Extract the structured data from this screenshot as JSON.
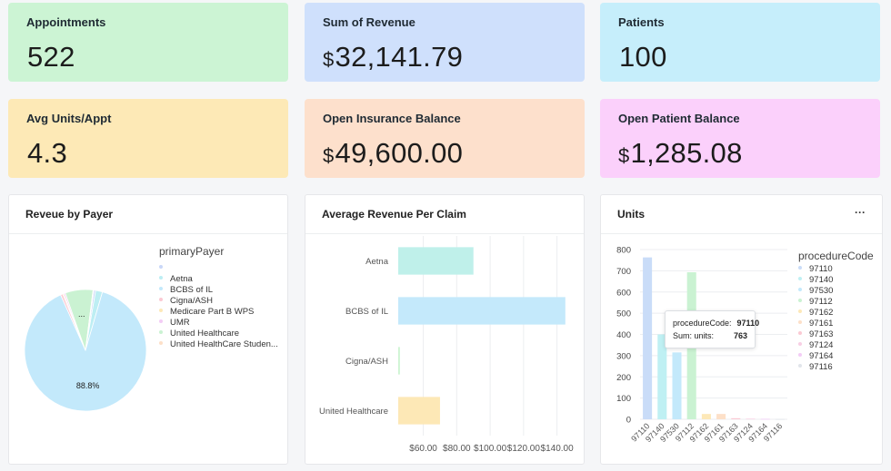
{
  "kpis": [
    {
      "title": "Appointments",
      "currency": "",
      "value": "522",
      "color": "#ccf4d4"
    },
    {
      "title": "Sum of Revenue",
      "currency": "$",
      "value": "32,141.79",
      "color": "#cfe0fc"
    },
    {
      "title": "Patients",
      "currency": "",
      "value": "100",
      "color": "#c6eefb"
    },
    {
      "title": "Avg Units/Appt",
      "currency": "",
      "value": "4.3",
      "color": "#fde9b6"
    },
    {
      "title": "Open Insurance Balance",
      "currency": "$",
      "value": "49,600.00",
      "color": "#fde0cc"
    },
    {
      "title": "Open Patient Balance",
      "currency": "$",
      "value": "1,285.08",
      "color": "#fbd0fb"
    }
  ],
  "panels": {
    "payer": {
      "title": "Reveue by Payer"
    },
    "claim": {
      "title": "Average Revenue Per Claim"
    },
    "units": {
      "title": "Units",
      "menu": "···"
    }
  },
  "chart_data": [
    {
      "type": "pie",
      "title": "Reveue by Payer",
      "legend_title": "primaryPayer",
      "legend_position": "right",
      "slices": [
        {
          "label": "",
          "value": 0.5,
          "color": "#c9d7f8"
        },
        {
          "label": "Aetna",
          "value": 1.8,
          "color": "#bdeef3"
        },
        {
          "label": "BCBS of IL",
          "value": 88.8,
          "color": "#c3e9fb"
        },
        {
          "label": "Cigna/ASH",
          "value": 0.6,
          "color": "#fbc9d3"
        },
        {
          "label": "Medicare Part B WPS",
          "value": 0.3,
          "color": "#fde8b8"
        },
        {
          "label": "UMR",
          "value": 0.4,
          "color": "#f3ccf6"
        },
        {
          "label": "United Healthcare",
          "value": 7.4,
          "color": "#caf2d2"
        },
        {
          "label": "United HealthCare Studen...",
          "value": 0.2,
          "color": "#fde0c8"
        }
      ],
      "data_labels": [
        {
          "text": "88.8%",
          "slice": 2
        },
        {
          "text": "...",
          "slice": 6
        }
      ]
    },
    {
      "type": "bar",
      "orientation": "horizontal",
      "title": "Average Revenue Per Claim",
      "categories": [
        "Aetna",
        "BCBS of IL",
        "Cigna/ASH",
        "United Healthcare"
      ],
      "values": [
        90,
        145,
        46,
        70
      ],
      "colors": [
        "#bff0ea",
        "#c4e9fb",
        "#cdf4d2",
        "#fde8b6"
      ],
      "xlim": [
        45,
        150
      ],
      "xticks": [
        60,
        80,
        100,
        120,
        140
      ],
      "xtick_labels": [
        "$60.00",
        "$80.00",
        "$100.00",
        "$120.00",
        "$140.00"
      ],
      "grid": true
    },
    {
      "type": "bar",
      "title": "Units",
      "legend_title": "procedureCode",
      "legend_position": "right",
      "categories": [
        "97110",
        "97140",
        "97530",
        "97112",
        "97162",
        "97161",
        "97163",
        "97124",
        "97164",
        "97116"
      ],
      "values": [
        763,
        400,
        315,
        693,
        25,
        25,
        5,
        3,
        2,
        1
      ],
      "colors": [
        "#c9dcf8",
        "#bff0f3",
        "#c3e9fb",
        "#caf2d2",
        "#fde8b8",
        "#fde0c8",
        "#fbc9d3",
        "#f8cfe4",
        "#f3ccf6",
        "#e1e5ea"
      ],
      "ylim": [
        0,
        800
      ],
      "yticks": [
        0,
        100,
        200,
        300,
        400,
        500,
        600,
        700,
        800
      ],
      "grid": true,
      "tooltip": {
        "label1": "procedureCode:",
        "value1": "97110",
        "label2": "Sum: units:",
        "value2": "763"
      }
    }
  ]
}
